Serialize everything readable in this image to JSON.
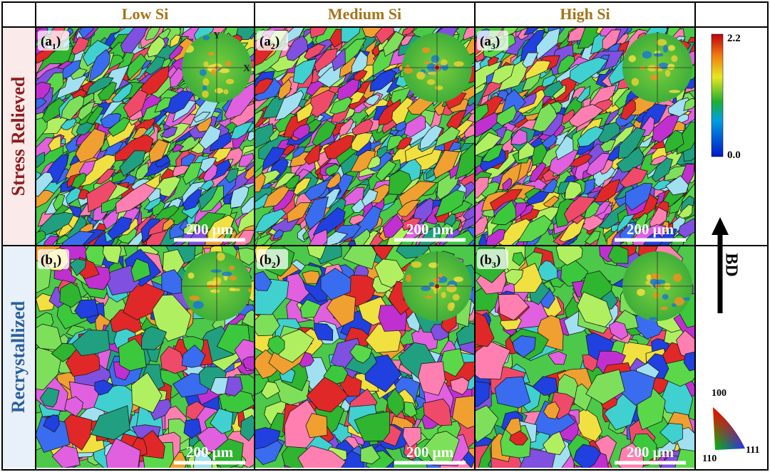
{
  "column_headers": [
    "Low Si",
    "Medium Si",
    "High Si"
  ],
  "row_labels": [
    "Stress Relieved",
    "Recrystallized"
  ],
  "panels": [
    [
      {
        "prefix": "(a",
        "subscript": "1",
        "suffix": ")",
        "scale_bar": "200 μm",
        "pole_axes": [
          "Y",
          "X"
        ]
      },
      {
        "prefix": "(a",
        "subscript": "2",
        "suffix": ")",
        "scale_bar": "200 μm"
      },
      {
        "prefix": "(a",
        "subscript": "3",
        "suffix": ")",
        "scale_bar": "200 μm"
      }
    ],
    [
      {
        "prefix": "(b",
        "subscript": "1",
        "suffix": ")",
        "scale_bar": "200 μm"
      },
      {
        "prefix": "(b",
        "subscript": "2",
        "suffix": ")",
        "scale_bar": "200 μm"
      },
      {
        "prefix": "(b",
        "subscript": "3",
        "suffix": ")",
        "scale_bar": "200 μm"
      }
    ]
  ],
  "colorbar": {
    "max": "2.2",
    "min": "0.0"
  },
  "build_direction": "BD",
  "ipf_triangle": {
    "top": "100",
    "bottom_left": "110",
    "right": "111"
  }
}
